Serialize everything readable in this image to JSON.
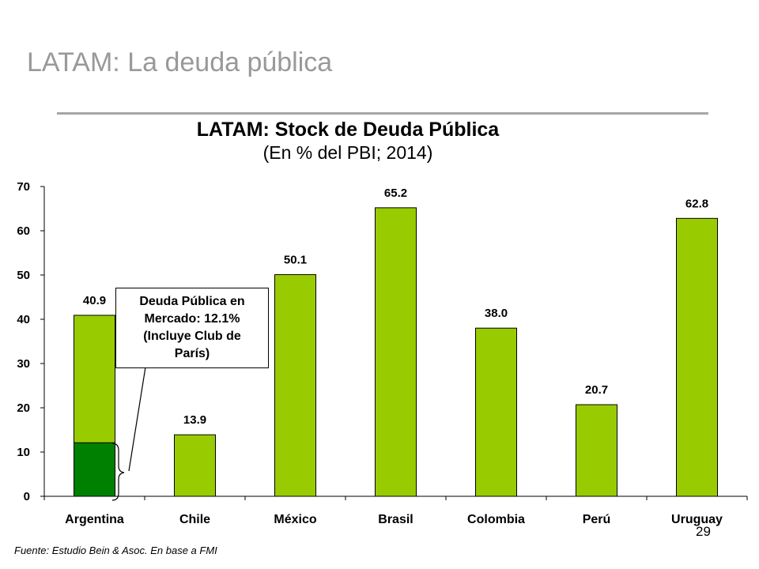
{
  "slide": {
    "title": "LATAM: La deuda pública",
    "source": "Fuente: Estudio Bein & Asoc. En base a FMI",
    "page_number": "29"
  },
  "callout": {
    "lines": [
      "Deuda Pública en",
      "Mercado: 12.1%",
      "(Incluye Club de",
      "París)"
    ]
  },
  "colors": {
    "bar": "#99cc00",
    "bar_highlight": "#008000",
    "bar_border": "#000000"
  },
  "chart_data": {
    "type": "bar",
    "title": "LATAM: Stock de Deuda Pública",
    "subtitle": "(En % del PBI; 2014)",
    "xlabel": "",
    "ylabel": "",
    "categories": [
      "Argentina",
      "Chile",
      "México",
      "Brasil",
      "Colombia",
      "Perú",
      "Uruguay"
    ],
    "values": [
      40.9,
      13.9,
      50.1,
      65.2,
      38.0,
      20.7,
      62.8
    ],
    "value_labels": [
      "40.9",
      "13.9",
      "50.1",
      "65.2",
      "38.0",
      "20.7",
      "62.8"
    ],
    "highlight": {
      "category": "Argentina",
      "value": 12.1
    },
    "ylim": [
      0,
      70
    ],
    "yticks": [
      0,
      10,
      20,
      30,
      40,
      50,
      60,
      70
    ],
    "grid": false,
    "legend": "none"
  }
}
